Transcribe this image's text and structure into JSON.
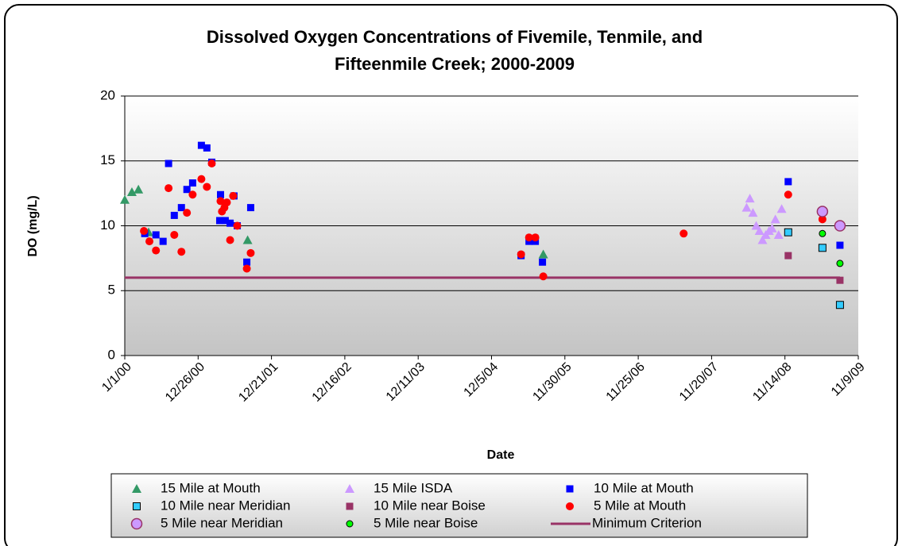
{
  "chart_data": {
    "type": "scatter",
    "title": [
      "Dissolved Oxygen Concentrations of Fivemile, Tenmile, and",
      "Fifteenmile Creek; 2000-2009"
    ],
    "x_label": "Date",
    "y_label": "DO (mg/L)",
    "xlim": [
      36526,
      40126
    ],
    "xticks": [
      {
        "value": 36526,
        "label": "1/1/00"
      },
      {
        "value": 36886,
        "label": "12/26/00"
      },
      {
        "value": 37246,
        "label": "12/21/01"
      },
      {
        "value": 37606,
        "label": "12/16/02"
      },
      {
        "value": 37966,
        "label": "12/11/03"
      },
      {
        "value": 38326,
        "label": "12/5/04"
      },
      {
        "value": 38686,
        "label": "11/30/05"
      },
      {
        "value": 39046,
        "label": "11/25/06"
      },
      {
        "value": 39406,
        "label": "11/20/07"
      },
      {
        "value": 39766,
        "label": "11/14/08"
      },
      {
        "value": 40126,
        "label": "11/9/09"
      }
    ],
    "ylim": [
      0,
      20
    ],
    "yticks": [
      0,
      5,
      10,
      15,
      20
    ],
    "grid": true,
    "legend": "bottom",
    "series": [
      {
        "name": "15 Mile at Mouth",
        "color": "#339966",
        "marker": "triangle",
        "x": [
          36526,
          36561,
          36593,
          36643,
          37129,
          38580
        ],
        "values": [
          12.0,
          12.6,
          12.8,
          9.5,
          8.9,
          7.8
        ]
      },
      {
        "name": "15 Mile ISDA",
        "color": "#cc99ff",
        "marker": "triangle",
        "x": [
          39578,
          39594,
          39609,
          39625,
          39641,
          39656,
          39672,
          39688,
          39703,
          39719,
          39735,
          39750
        ],
        "values": [
          11.4,
          12.1,
          11.0,
          10.0,
          9.6,
          8.9,
          9.3,
          9.6,
          9.8,
          10.5,
          9.3,
          11.3
        ]
      },
      {
        "name": "10 Mile at Mouth",
        "color": "#0000ff",
        "marker": "square",
        "x": [
          36624,
          36679,
          36714,
          36741,
          36769,
          36804,
          36831,
          36859,
          36902,
          36929,
          36953,
          36996,
          36992,
          37019,
          37043,
          37062,
          37078,
          37125,
          37144,
          38471,
          38510,
          38541,
          38576,
          39782,
          40036
        ],
        "values": [
          9.4,
          9.3,
          8.8,
          14.8,
          10.8,
          11.4,
          12.8,
          13.3,
          16.2,
          16.0,
          14.9,
          12.4,
          10.4,
          10.4,
          10.2,
          12.3,
          10.0,
          7.2,
          11.4,
          7.7,
          8.8,
          8.8,
          7.2,
          13.4,
          8.5
        ]
      },
      {
        "name": "10 Mile near Meridian",
        "color": "#33ccff",
        "marker": "square-outline",
        "x": [
          39782,
          39950,
          40036
        ],
        "values": [
          9.5,
          8.3,
          3.9
        ]
      },
      {
        "name": "10 Mile near Boise",
        "color": "#993366",
        "marker": "square",
        "x": [
          39782,
          40036
        ],
        "values": [
          7.7,
          5.8
        ]
      },
      {
        "name": "5 Mile at Mouth",
        "color": "#ff0000",
        "marker": "circle",
        "x": [
          36620,
          36647,
          36679,
          36741,
          36769,
          36804,
          36831,
          36859,
          36902,
          36929,
          36953,
          36996,
          37003,
          37015,
          37027,
          37043,
          37058,
          37078,
          37125,
          37144,
          38471,
          38510,
          38541,
          38580,
          39269,
          39782,
          39950
        ],
        "values": [
          9.6,
          8.8,
          8.1,
          12.9,
          9.3,
          8.0,
          11.0,
          12.4,
          13.6,
          13.0,
          14.8,
          11.9,
          11.1,
          11.4,
          11.8,
          8.9,
          12.3,
          10.0,
          6.7,
          7.9,
          7.8,
          9.1,
          9.1,
          6.1,
          9.4,
          12.4,
          10.5
        ]
      },
      {
        "name": "5 Mile near Meridian",
        "color": "#cc99ff",
        "marker": "big-circle",
        "x": [
          39950,
          40036
        ],
        "values": [
          11.1,
          10.0
        ]
      },
      {
        "name": "5 Mile near Boise",
        "color": "#00ff00",
        "marker": "small-circle",
        "x": [
          39950,
          40036
        ],
        "values": [
          9.4,
          7.1
        ]
      },
      {
        "name": "Minimum Criterion",
        "color": "#993366",
        "marker": "line",
        "x": [
          36526,
          40036
        ],
        "values": [
          6,
          6
        ]
      }
    ]
  }
}
